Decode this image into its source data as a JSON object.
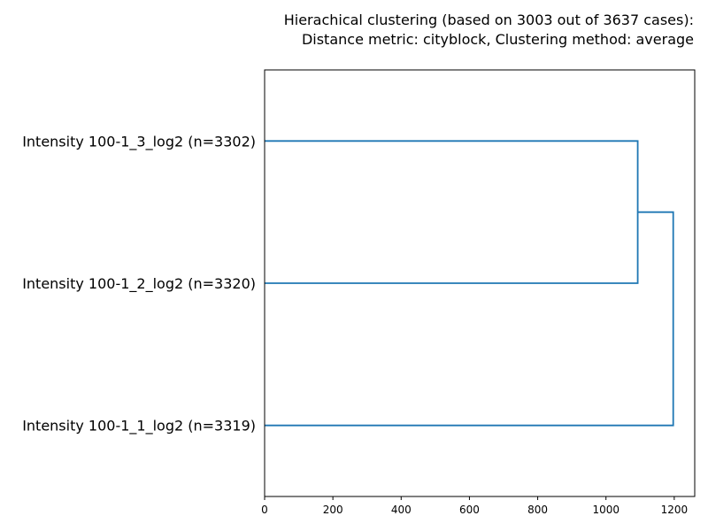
{
  "chart_data": {
    "type": "dendrogram",
    "title_line1": "Hierachical clustering (based on 3003 out of 3637 cases):",
    "title_line2": "Distance metric: cityblock, Clustering method: average",
    "orientation": "horizontal",
    "leaves": [
      "Intensity 100-1_3_log2 (n=3302)",
      "Intensity 100-1_2_log2 (n=3320)",
      "Intensity 100-1_1_log2 (n=3319)"
    ],
    "merges": [
      {
        "children": [
          "Intensity 100-1_3_log2 (n=3302)",
          "Intensity 100-1_2_log2 (n=3320)"
        ],
        "distance": 1093
      },
      {
        "children": [
          "cluster-1",
          "Intensity 100-1_1_log2 (n=3319)"
        ],
        "distance": 1197
      }
    ],
    "xlim": [
      0,
      1260
    ],
    "xticks": [
      0,
      200,
      400,
      600,
      800,
      1000,
      1200
    ],
    "line_color": "#1f77b4"
  }
}
